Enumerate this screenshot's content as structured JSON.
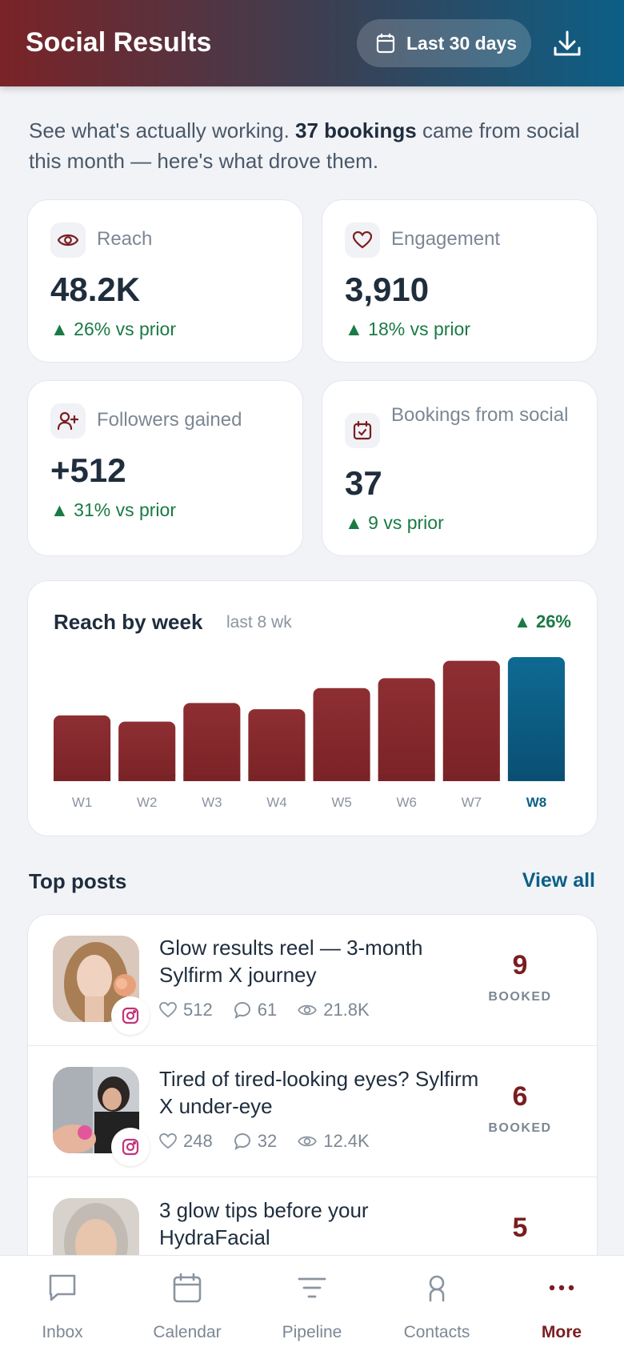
{
  "header": {
    "title": "Social Results",
    "range_label": "Last 30 days"
  },
  "intro": {
    "prefix": "See what's actually working. ",
    "highlight": "37 bookings",
    "suffix": " came from social this month — here's what drove them."
  },
  "stats": [
    {
      "label": "Reach",
      "value": "48.2K",
      "delta": "26% vs prior",
      "icon": "eye-icon"
    },
    {
      "label": "Engagement",
      "value": "3,910",
      "delta": "18% vs prior",
      "icon": "heart-icon"
    },
    {
      "label": "Followers gained",
      "value": "+512",
      "delta": "31% vs prior",
      "icon": "user-plus-icon"
    },
    {
      "label": "Bookings from social",
      "value": "37",
      "delta": "9 vs prior",
      "icon": "calendar-check-icon"
    }
  ],
  "chart_data": {
    "type": "bar",
    "title": "Reach by week",
    "subtitle": "last 8 wk",
    "delta": "26%",
    "categories": [
      "W1",
      "W2",
      "W3",
      "W4",
      "W5",
      "W6",
      "W7",
      "W8"
    ],
    "values": [
      5.3,
      4.8,
      6.3,
      5.8,
      7.5,
      8.3,
      9.7,
      10.0
    ],
    "highlight_index": 7,
    "bar_color": "#8a2a2e",
    "highlight_color": "#0c5f86"
  },
  "top_posts": {
    "title": "Top posts",
    "view_all": "View all",
    "booked_label": "BOOKED",
    "items": [
      {
        "title": "Glow results reel — 3-month Sylfirm X journey",
        "likes": "512",
        "comments": "61",
        "views": "21.8K",
        "booked": "9"
      },
      {
        "title": "Tired of tired-looking eyes? Sylfirm X under-eye",
        "likes": "248",
        "comments": "32",
        "views": "12.4K",
        "booked": "6"
      },
      {
        "title": "3 glow tips before your HydraFacial",
        "likes": "",
        "comments": "",
        "views": "",
        "booked": "5"
      }
    ]
  },
  "nav": {
    "items": [
      {
        "label": "Inbox",
        "icon": "chat-icon"
      },
      {
        "label": "Calendar",
        "icon": "calendar-icon"
      },
      {
        "label": "Pipeline",
        "icon": "filter-icon"
      },
      {
        "label": "Contacts",
        "icon": "person-icon"
      },
      {
        "label": "More",
        "icon": "more-icon"
      }
    ],
    "active_index": 4
  },
  "colors": {
    "accent": "#7a1d20",
    "brand_blue": "#0c5f86",
    "positive": "#1a7a45"
  }
}
